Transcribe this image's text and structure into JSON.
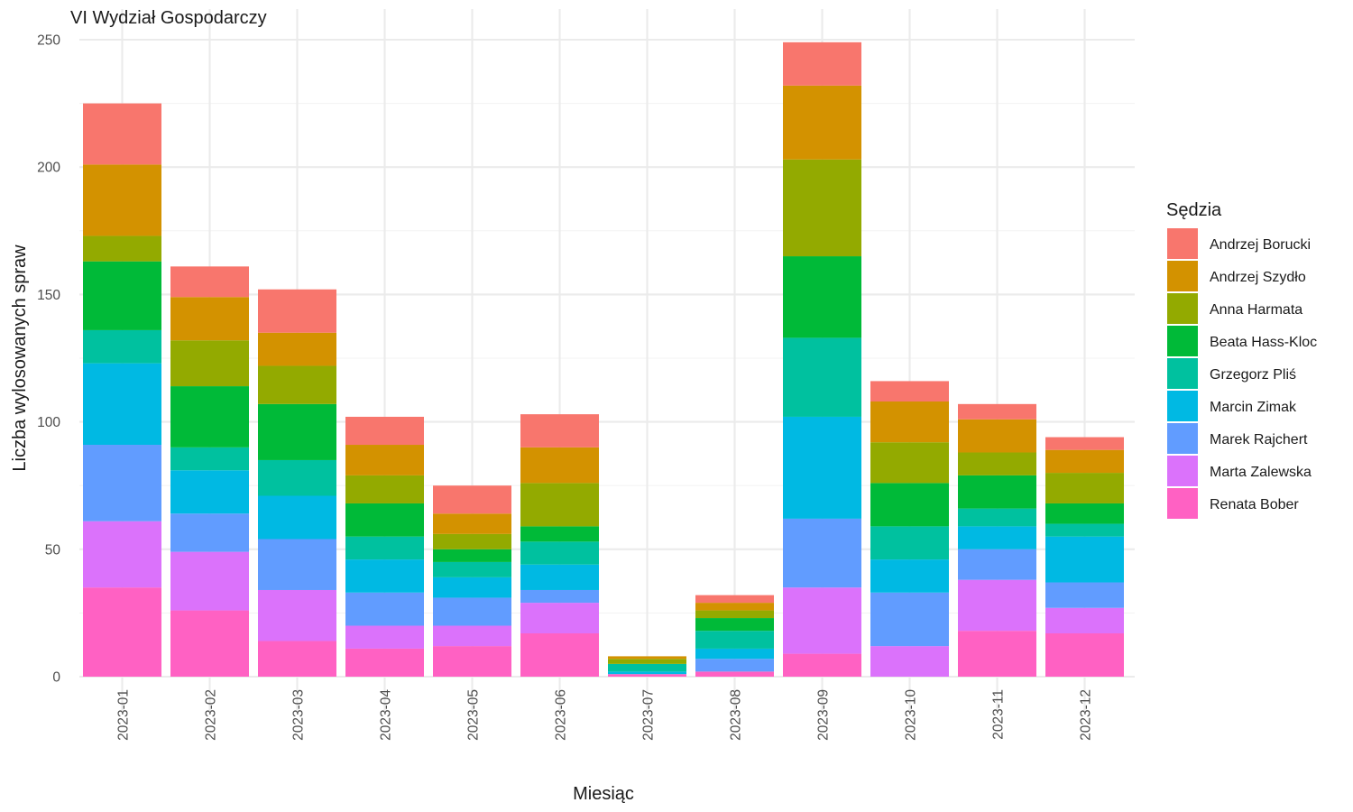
{
  "chart_data": {
    "type": "bar",
    "stacked": true,
    "title": "VI Wydział Gospodarczy",
    "xlabel": "Miesiąc",
    "ylabel": "Liczba wylosowanych spraw",
    "ylim": [
      0,
      255
    ],
    "yticks": [
      0,
      50,
      100,
      150,
      200,
      250
    ],
    "grid": true,
    "legend_title": "Sędzia",
    "legend_position": "right",
    "categories": [
      "2023-01",
      "2023-02",
      "2023-03",
      "2023-04",
      "2023-05",
      "2023-06",
      "2023-07",
      "2023-08",
      "2023-09",
      "2023-10",
      "2023-11",
      "2023-12"
    ],
    "series": [
      {
        "name": "Renata Bober",
        "color": "#FF61C3",
        "values": [
          35,
          26,
          14,
          11,
          12,
          17,
          1,
          2,
          9,
          0,
          18,
          17
        ]
      },
      {
        "name": "Marta Zalewska",
        "color": "#DB72FB",
        "values": [
          26,
          23,
          20,
          9,
          8,
          12,
          0,
          0,
          26,
          12,
          20,
          10
        ]
      },
      {
        "name": "Marek Rajchert",
        "color": "#619CFF",
        "values": [
          30,
          15,
          20,
          13,
          11,
          5,
          0,
          5,
          27,
          21,
          12,
          10
        ]
      },
      {
        "name": "Marcin Zimak",
        "color": "#00B9E3",
        "values": [
          32,
          17,
          17,
          13,
          8,
          10,
          1,
          4,
          40,
          13,
          9,
          18
        ]
      },
      {
        "name": "Grzegorz Pliś",
        "color": "#00C19F",
        "values": [
          13,
          9,
          14,
          9,
          6,
          9,
          3,
          7,
          31,
          13,
          7,
          5
        ]
      },
      {
        "name": "Beata Hass-Kloc",
        "color": "#00BA38",
        "values": [
          27,
          24,
          22,
          13,
          5,
          6,
          0,
          5,
          32,
          17,
          13,
          8
        ]
      },
      {
        "name": "Anna Harmata",
        "color": "#93AA00",
        "values": [
          10,
          18,
          15,
          11,
          6,
          17,
          2,
          3,
          38,
          16,
          9,
          12
        ]
      },
      {
        "name": "Andrzej Szydło",
        "color": "#D39200",
        "values": [
          28,
          17,
          13,
          12,
          8,
          14,
          1,
          3,
          29,
          16,
          13,
          9
        ]
      },
      {
        "name": "Andrzej Borucki",
        "color": "#F8766D",
        "values": [
          24,
          12,
          17,
          11,
          11,
          13,
          0,
          3,
          17,
          8,
          6,
          5
        ]
      }
    ],
    "legend_order": [
      "Andrzej Borucki",
      "Andrzej Szydło",
      "Anna Harmata",
      "Beata Hass-Kloc",
      "Grzegorz Pliś",
      "Marcin Zimak",
      "Marek Rajchert",
      "Marta Zalewska",
      "Renata Bober"
    ]
  }
}
